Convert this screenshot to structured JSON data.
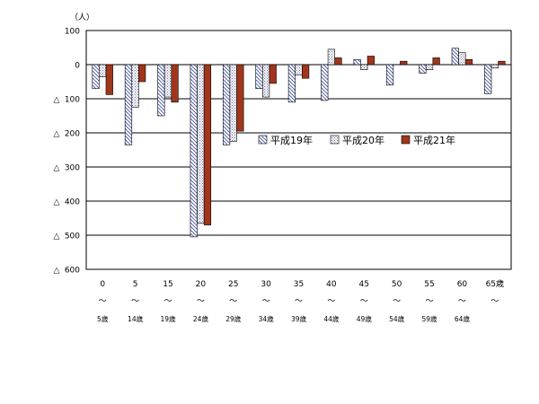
{
  "chart_data": {
    "type": "bar",
    "unit_label": "（人）",
    "negative_marker": "△",
    "y_ticks": [
      {
        "value": 100,
        "label": "100"
      },
      {
        "value": 0,
        "label": "0"
      },
      {
        "value": -100,
        "label": "100"
      },
      {
        "value": -200,
        "label": "200"
      },
      {
        "value": -300,
        "label": "300"
      },
      {
        "value": -400,
        "label": "400"
      },
      {
        "value": -500,
        "label": "500"
      },
      {
        "value": -600,
        "label": "600"
      }
    ],
    "ylim": [
      -600,
      100
    ],
    "categories": [
      {
        "from": "0",
        "tilde": "～",
        "to": "5歳"
      },
      {
        "from": "5",
        "tilde": "～",
        "to": "14歳"
      },
      {
        "from": "15",
        "tilde": "～",
        "to": "19歳"
      },
      {
        "from": "20",
        "tilde": "～",
        "to": "24歳"
      },
      {
        "from": "25",
        "tilde": "～",
        "to": "29歳"
      },
      {
        "from": "30",
        "tilde": "～",
        "to": "34歳"
      },
      {
        "from": "35",
        "tilde": "～",
        "to": "39歳"
      },
      {
        "from": "40",
        "tilde": "～",
        "to": "44歳"
      },
      {
        "from": "45",
        "tilde": "～",
        "to": "49歳"
      },
      {
        "from": "50",
        "tilde": "～",
        "to": "54歳"
      },
      {
        "from": "55",
        "tilde": "～",
        "to": "59歳"
      },
      {
        "from": "60",
        "tilde": "～",
        "to": "64歳"
      },
      {
        "from": "65歳",
        "tilde": "～",
        "to": ""
      }
    ],
    "series": [
      {
        "name": "平成19年",
        "pattern": "diagonal-hatch",
        "values": [
          -70,
          -235,
          -150,
          -505,
          -235,
          -70,
          -110,
          -105,
          15,
          -60,
          -25,
          48,
          -85
        ]
      },
      {
        "name": "平成20年",
        "pattern": "dotted",
        "values": [
          -35,
          -125,
          -95,
          -465,
          -225,
          -95,
          -30,
          45,
          -15,
          0,
          -15,
          35,
          -10
        ]
      },
      {
        "name": "平成21年",
        "pattern": "solid",
        "color": "#A0361B",
        "values": [
          -88,
          -50,
          -110,
          -470,
          -195,
          -55,
          -40,
          20,
          25,
          10,
          20,
          15,
          10
        ]
      }
    ],
    "legend_position": "center-right",
    "grid": true
  }
}
